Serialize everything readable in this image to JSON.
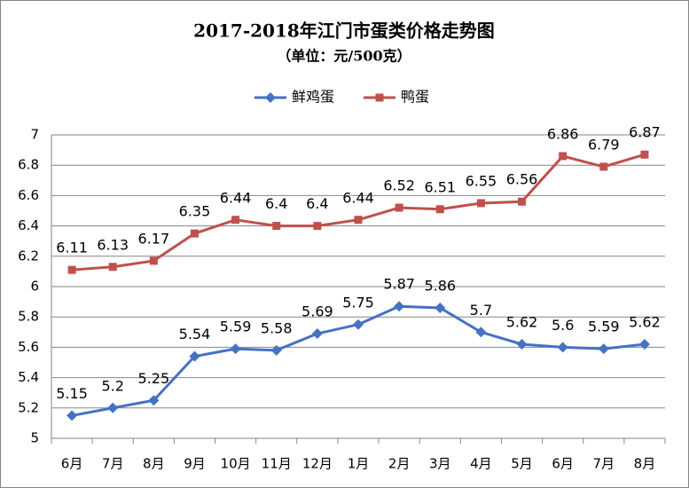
{
  "chart_data": {
    "type": "line",
    "title": "2017-2018年江门市蛋类价格走势图",
    "subtitle": "（单位：元/500克）",
    "categories": [
      "6月",
      "7月",
      "8月",
      "9月",
      "10月",
      "11月",
      "12月",
      "1月",
      "2月",
      "3月",
      "4月",
      "5月",
      "6月",
      "7月",
      "8月"
    ],
    "series": [
      {
        "name": "鲜鸡蛋",
        "color": "#4472c4",
        "marker": "diamond",
        "values": [
          5.15,
          5.2,
          5.25,
          5.54,
          5.59,
          5.58,
          5.69,
          5.75,
          5.87,
          5.86,
          5.7,
          5.62,
          5.6,
          5.59,
          5.62
        ]
      },
      {
        "name": "鸭蛋",
        "color": "#c0504d",
        "marker": "square",
        "values": [
          6.11,
          6.13,
          6.17,
          6.35,
          6.44,
          6.4,
          6.4,
          6.44,
          6.52,
          6.51,
          6.55,
          6.56,
          6.86,
          6.79,
          6.87
        ]
      }
    ],
    "ylim": [
      5,
      7
    ],
    "yticks": [
      5,
      5.2,
      5.4,
      5.6,
      5.8,
      6,
      6.2,
      6.4,
      6.6,
      6.8,
      7
    ],
    "grid": true,
    "legend": "top"
  }
}
